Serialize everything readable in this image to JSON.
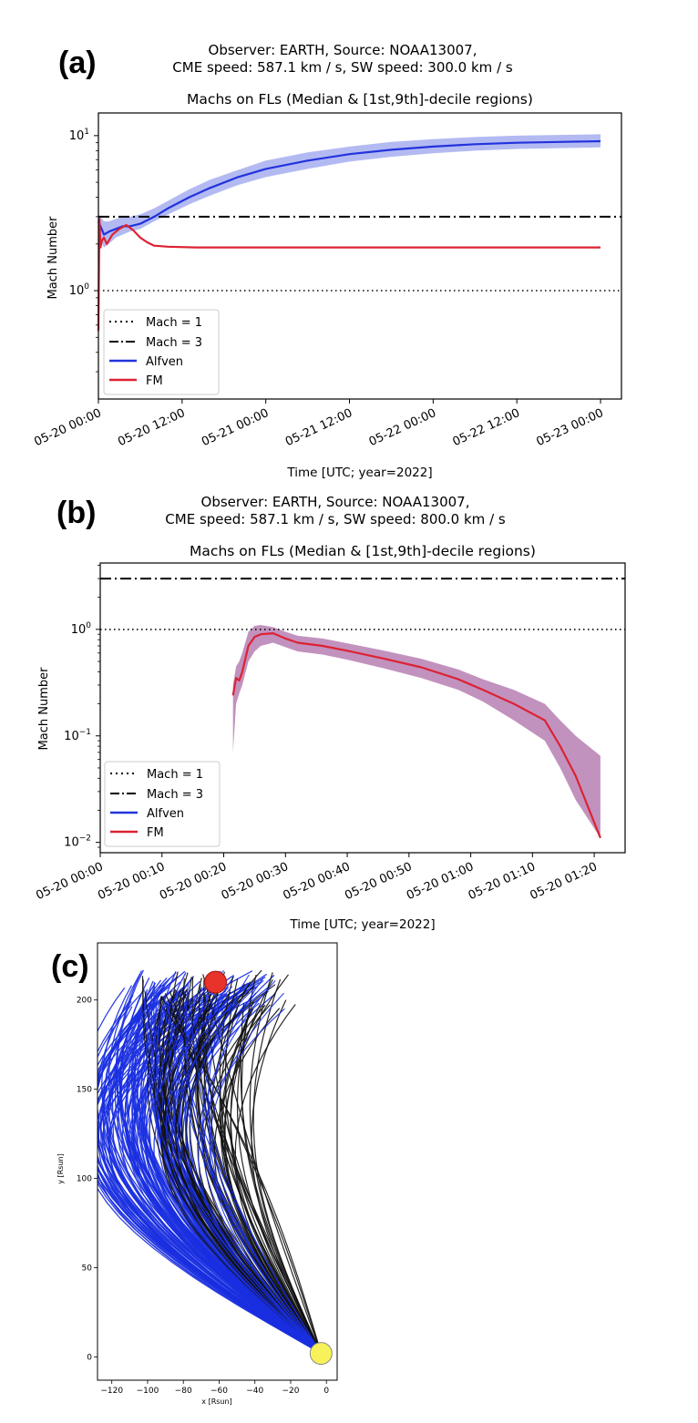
{
  "colors": {
    "alfven": "#2233dd",
    "alfven_band": "#9aa3ee",
    "fm": "#dd2233",
    "fm_band_b": "#b77fb3",
    "black_lines": "#111111",
    "blue_lines": "#1a2fe0",
    "observer_dot": "#e8332b",
    "sun_dot": "#f8f25a"
  },
  "chart_data": [
    {
      "panel": "(a)",
      "type": "line",
      "header_line1": "Observer: EARTH, Source: NOAA13007,",
      "header_line2": "CME speed: 587.1 km / s, SW speed: 300.0 km / s",
      "title": "Machs on FLs (Median & [1st,9th]-decile regions)",
      "xlabel": "Time [UTC; year=2022]",
      "ylabel": "Mach Number",
      "yscale": "log",
      "ylim": [
        0.2,
        14
      ],
      "xlim_hours": [
        0,
        75
      ],
      "x_ticks_hours": [
        0,
        12,
        24,
        36,
        48,
        60,
        72
      ],
      "x_tick_labels": [
        "05-20 00:00",
        "05-20 12:00",
        "05-21 00:00",
        "05-21 12:00",
        "05-22 00:00",
        "05-22 12:00",
        "05-23 00:00"
      ],
      "y_tick_values": [
        1,
        10
      ],
      "y_tick_labels": [
        {
          "base": "10",
          "exp": "0"
        },
        {
          "base": "10",
          "exp": "1"
        }
      ],
      "reference_lines": [
        {
          "name": "Mach = 1",
          "value": 1,
          "style": "dotted"
        },
        {
          "name": "Mach = 3",
          "value": 3,
          "style": "dashdot"
        }
      ],
      "legend": [
        "Mach = 1",
        "Mach = 3",
        "Alfven",
        "FM"
      ],
      "legend_position": "lower-left",
      "series": [
        {
          "name": "Alfven",
          "x": [
            0,
            0.3,
            0.8,
            1.5,
            2.5,
            3.5,
            4.5,
            6,
            8,
            10,
            13,
            16,
            20,
            24,
            30,
            36,
            42,
            48,
            54,
            60,
            66,
            72
          ],
          "y": [
            2.8,
            2.6,
            2.3,
            2.4,
            2.5,
            2.6,
            2.6,
            2.7,
            3.0,
            3.4,
            4.0,
            4.6,
            5.4,
            6.1,
            6.9,
            7.6,
            8.1,
            8.5,
            8.8,
            9.0,
            9.1,
            9.2
          ],
          "band_low": [
            2.3,
            2.1,
            1.9,
            2.0,
            2.2,
            2.3,
            2.4,
            2.5,
            2.8,
            3.1,
            3.6,
            4.1,
            4.8,
            5.4,
            6.1,
            6.8,
            7.3,
            7.7,
            8.0,
            8.2,
            8.3,
            8.4
          ],
          "band_high": [
            3.1,
            3.0,
            2.8,
            2.8,
            2.9,
            3.0,
            3.0,
            3.1,
            3.4,
            3.8,
            4.5,
            5.2,
            6.0,
            6.9,
            7.8,
            8.5,
            9.1,
            9.5,
            9.8,
            10.0,
            10.1,
            10.2
          ]
        },
        {
          "name": "FM",
          "x": [
            0,
            0.15,
            0.3,
            0.5,
            0.8,
            1.2,
            2,
            3,
            4,
            5,
            6,
            7,
            8,
            10,
            14,
            20,
            30,
            40,
            50,
            60,
            72
          ],
          "y": [
            0.55,
            2.9,
            1.9,
            2.1,
            2.2,
            2.0,
            2.3,
            2.5,
            2.65,
            2.45,
            2.2,
            2.05,
            1.95,
            1.92,
            1.9,
            1.9,
            1.9,
            1.9,
            1.9,
            1.9,
            1.9
          ]
        }
      ]
    },
    {
      "panel": "(b)",
      "type": "line",
      "header_line1": "Observer: EARTH, Source: NOAA13007,",
      "header_line2": "CME speed: 587.1 km / s, SW speed: 800.0 km / s",
      "title": "Machs on FLs (Median & [1st,9th]-decile regions)",
      "xlabel": "Time [UTC; year=2022]",
      "ylabel": "Mach Number",
      "yscale": "log",
      "ylim": [
        0.008,
        4.2
      ],
      "xlim_minutes": [
        0,
        85
      ],
      "x_ticks_minutes": [
        0,
        10,
        20,
        30,
        40,
        50,
        60,
        70,
        80
      ],
      "x_tick_labels": [
        "05-20 00:00",
        "05-20 00:10",
        "05-20 00:20",
        "05-20 00:30",
        "05-20 00:40",
        "05-20 00:50",
        "05-20 01:00",
        "05-20 01:10",
        "05-20 01:20"
      ],
      "y_tick_values": [
        0.01,
        0.1,
        1
      ],
      "y_tick_labels": [
        {
          "base": "10",
          "exp": "−2"
        },
        {
          "base": "10",
          "exp": "−1"
        },
        {
          "base": "10",
          "exp": "0"
        }
      ],
      "reference_lines": [
        {
          "name": "Mach = 1",
          "value": 1,
          "style": "dotted"
        },
        {
          "name": "Mach = 3",
          "value": 3,
          "style": "dashdot"
        }
      ],
      "legend": [
        "Mach = 1",
        "Mach = 3",
        "Alfven",
        "FM"
      ],
      "legend_position": "lower-left",
      "series": [
        {
          "name": "FM",
          "x": [
            21.5,
            22,
            22.5,
            23,
            24,
            25,
            26,
            28,
            30,
            32,
            36,
            40,
            46,
            52,
            58,
            62,
            67,
            72,
            74.5,
            77,
            81
          ],
          "y": [
            0.24,
            0.35,
            0.33,
            0.4,
            0.7,
            0.85,
            0.9,
            0.92,
            0.82,
            0.75,
            0.7,
            0.63,
            0.53,
            0.44,
            0.34,
            0.27,
            0.2,
            0.14,
            0.08,
            0.042,
            0.011
          ],
          "band_low": [
            0.07,
            0.2,
            0.25,
            0.3,
            0.5,
            0.62,
            0.7,
            0.75,
            0.68,
            0.62,
            0.58,
            0.52,
            0.43,
            0.35,
            0.27,
            0.21,
            0.14,
            0.09,
            0.05,
            0.025,
            0.011
          ],
          "band_high": [
            0.3,
            0.45,
            0.5,
            0.6,
            0.95,
            1.08,
            1.1,
            1.05,
            0.95,
            0.87,
            0.82,
            0.74,
            0.63,
            0.53,
            0.42,
            0.34,
            0.27,
            0.2,
            0.14,
            0.1,
            0.065
          ]
        }
      ]
    },
    {
      "panel": "(c)",
      "type": "line",
      "xlabel": "x [Rsun]",
      "ylabel": "y [Rsun]",
      "xlim": [
        -128,
        6
      ],
      "ylim": [
        -13,
        232
      ],
      "x_ticks": [
        -120,
        -100,
        -80,
        -60,
        -40,
        -20,
        0
      ],
      "x_tick_labels": [
        "−120",
        "−100",
        "−80",
        "−60",
        "−40",
        "−20",
        "0"
      ],
      "y_ticks": [
        0,
        50,
        100,
        150,
        200
      ],
      "y_tick_labels": [
        "0",
        "50",
        "100",
        "150",
        "200"
      ],
      "sun_position": [
        -3,
        2
      ],
      "observer_position": [
        -62,
        210
      ],
      "field_lines": {
        "count_black": 70,
        "count_blue": 110,
        "end_y": 215
      }
    }
  ]
}
